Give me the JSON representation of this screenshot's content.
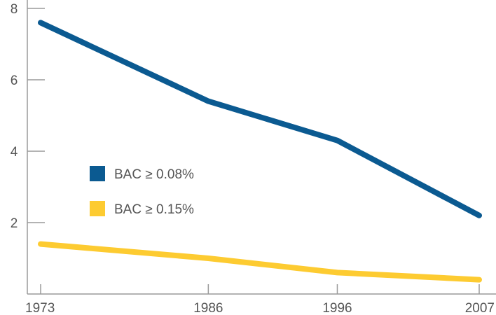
{
  "chart_data": {
    "type": "line",
    "title": "",
    "xlabel": "",
    "ylabel": "",
    "x": [
      "1973",
      "1986",
      "1996",
      "2007"
    ],
    "ylim": [
      0,
      8
    ],
    "yticks": [
      2,
      4,
      6,
      8
    ],
    "grid": false,
    "legend_position": "center-left",
    "series": [
      {
        "name": "BAC ≥ 0.08%",
        "values": [
          7.6,
          5.4,
          4.3,
          2.2
        ],
        "color": "#0b5a91"
      },
      {
        "name": "BAC ≥ 0.15%",
        "values": [
          1.4,
          1.0,
          0.6,
          0.4
        ],
        "color": "#fdcb31"
      }
    ]
  }
}
